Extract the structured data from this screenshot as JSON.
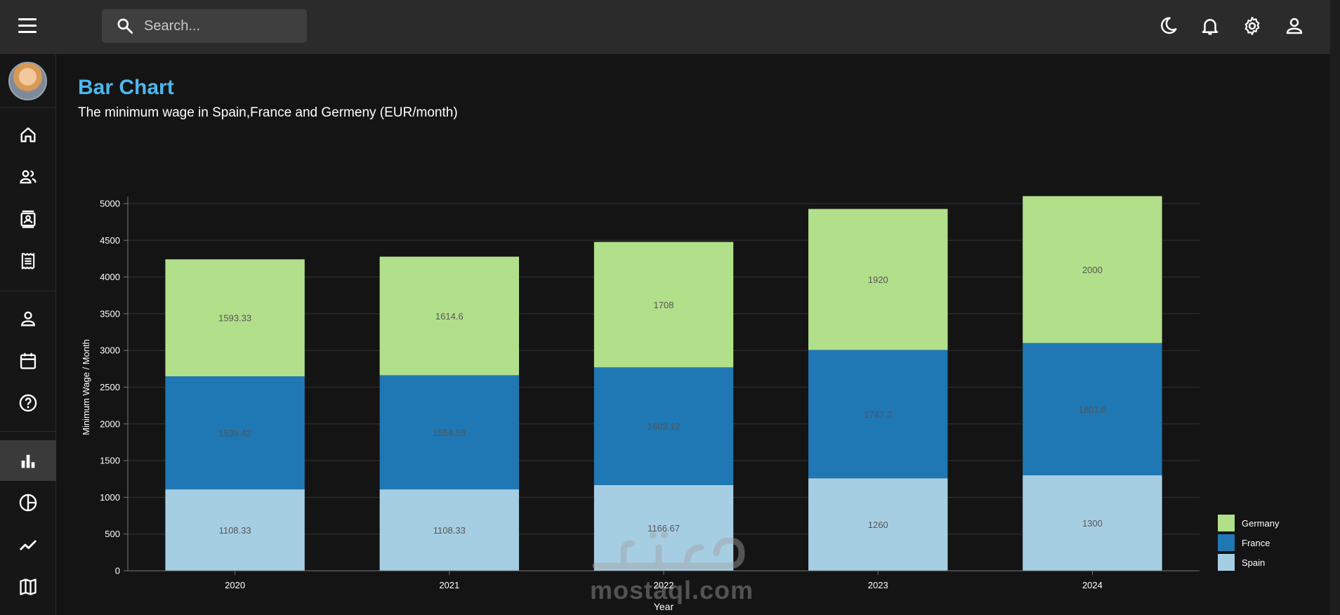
{
  "topbar": {
    "search_placeholder": "Search...",
    "icons": [
      "menu-icon",
      "search-icon",
      "moon-icon",
      "bell-icon",
      "gear-icon",
      "user-icon"
    ]
  },
  "sidebar": {
    "items": [
      {
        "name": "home",
        "icon": "home-icon"
      },
      {
        "name": "team",
        "icon": "team-icon"
      },
      {
        "name": "contacts",
        "icon": "contacts-icon"
      },
      {
        "name": "invoices",
        "icon": "receipt-icon"
      },
      {
        "name": "profile",
        "icon": "person-icon"
      },
      {
        "name": "calendar",
        "icon": "calendar-icon"
      },
      {
        "name": "faq",
        "icon": "help-icon"
      },
      {
        "name": "bar",
        "icon": "bar-chart-icon",
        "active": true
      },
      {
        "name": "pie",
        "icon": "pie-chart-icon"
      },
      {
        "name": "line",
        "icon": "line-chart-icon"
      },
      {
        "name": "geography",
        "icon": "map-icon"
      }
    ]
  },
  "page": {
    "title": "Bar Chart",
    "subtitle": "The minimum wage in Spain,France and Germeny (EUR/month)"
  },
  "watermark": {
    "arabic": "مستقل",
    "latin": "mostaql.com"
  },
  "colors": {
    "accent": "#4cb8f0",
    "germany": "#b2df8a",
    "france": "#1f78b4",
    "spain": "#a6cee3"
  },
  "chart_data": {
    "type": "bar",
    "stacked": true,
    "categories": [
      "2020",
      "2021",
      "2022",
      "2023",
      "2024"
    ],
    "series": [
      {
        "name": "Spain",
        "values": [
          1108.33,
          1108.33,
          1166.67,
          1260,
          1300
        ],
        "color": "#a6cee3"
      },
      {
        "name": "France",
        "values": [
          1539.42,
          1554.58,
          1603.12,
          1747.2,
          1801.8
        ],
        "color": "#1f78b4"
      },
      {
        "name": "Germany",
        "values": [
          1593.33,
          1614.6,
          1708,
          1920,
          2000
        ],
        "color": "#b2df8a"
      }
    ],
    "xlabel": "Year",
    "ylabel": "Minimum Wage / Month",
    "ylim": [
      0,
      5000
    ],
    "yticks": [
      0,
      500,
      1000,
      1500,
      2000,
      2500,
      3000,
      3500,
      4000,
      4500,
      5000
    ],
    "grid": true,
    "legend_position": "bottom-right"
  }
}
